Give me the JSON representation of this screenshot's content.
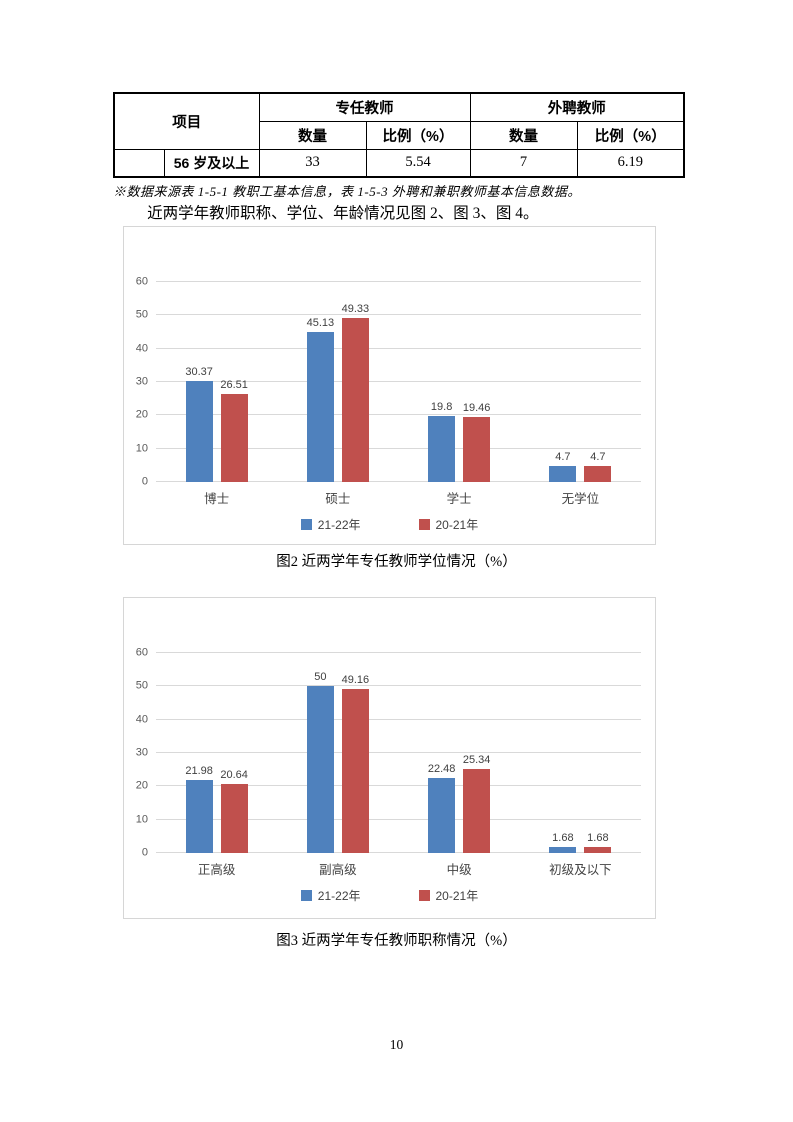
{
  "page": {
    "number": "10"
  },
  "table": {
    "header": {
      "item": "项目",
      "full_time_group": "专任教师",
      "external_group": "外聘教师",
      "count_label": "数量",
      "ratio_label": "比例（%）"
    },
    "row": {
      "label": "56 岁及以上",
      "ft_count": "33",
      "ft_ratio": "5.54",
      "ext_count": "7",
      "ext_ratio": "6.19"
    },
    "footnote": "※数据来源表 1-5-1 教职工基本信息，表 1-5-3 外聘和兼职教师基本信息数据。"
  },
  "paragraph": "近两学年教师职称、学位、年龄情况见图 2、图 3、图 4。",
  "colors": {
    "series_blue": "#4F81BD",
    "series_red": "#C0504D",
    "gridline": "#D9D9D9",
    "axis_text": "#595959",
    "data_label": "#404040"
  },
  "chart_data": [
    {
      "type": "bar",
      "title": "",
      "categories": [
        "博士",
        "硕士",
        "学士",
        "无学位"
      ],
      "series": [
        {
          "name": "21-22年",
          "color": "#4F81BD",
          "values": [
            30.37,
            45.13,
            19.8,
            4.7
          ]
        },
        {
          "name": "20-21年",
          "color": "#C0504D",
          "values": [
            26.51,
            49.33,
            19.46,
            4.7
          ]
        }
      ],
      "xlabel": "",
      "ylabel": "",
      "ylim": [
        0,
        60
      ],
      "ytick_step": 10,
      "grid": true,
      "legend_position": "bottom",
      "caption": "图2 近两学年专任教师学位情况（%）"
    },
    {
      "type": "bar",
      "title": "",
      "categories": [
        "正高级",
        "副高级",
        "中级",
        "初级及以下"
      ],
      "series": [
        {
          "name": "21-22年",
          "color": "#4F81BD",
          "values": [
            21.98,
            50,
            22.48,
            1.68
          ]
        },
        {
          "name": "20-21年",
          "color": "#C0504D",
          "values": [
            20.64,
            49.16,
            25.34,
            1.68
          ]
        }
      ],
      "xlabel": "",
      "ylabel": "",
      "ylim": [
        0,
        60
      ],
      "ytick_step": 10,
      "grid": true,
      "legend_position": "bottom",
      "caption": "图3  近两学年专任教师职称情况（%）"
    }
  ]
}
